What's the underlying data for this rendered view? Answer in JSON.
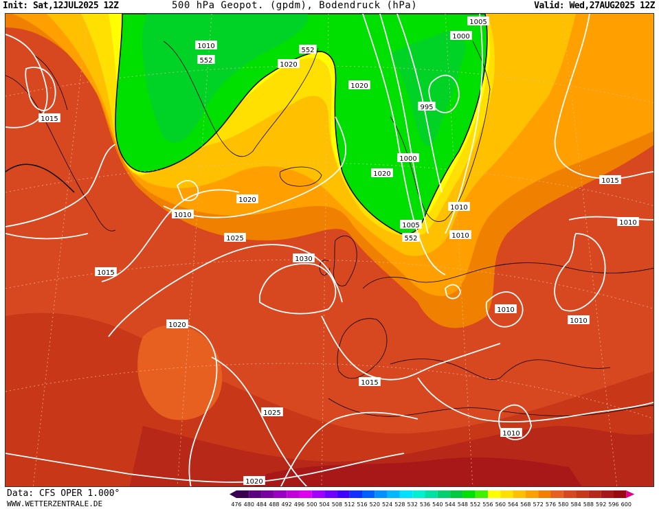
{
  "header": {
    "init": "Init: Sat,12JUL2025 12Z",
    "title": "500 hPa Geopot. (gpdm), Bodendruck (hPa)",
    "valid": "Valid: Wed,27AUG2025 12Z"
  },
  "footer": {
    "data_source": "Data: CFS OPER 1.000°",
    "website": "WWW.WETTERZENTRALE.DE"
  },
  "legend": {
    "values": [
      "476",
      "480",
      "484",
      "488",
      "492",
      "496",
      "500",
      "504",
      "508",
      "512",
      "516",
      "520",
      "524",
      "528",
      "532",
      "536",
      "540",
      "544",
      "548",
      "552",
      "556",
      "560",
      "564",
      "568",
      "572",
      "576",
      "580",
      "584",
      "588",
      "592",
      "596",
      "600"
    ],
    "colors": [
      "#3a0050",
      "#5a0080",
      "#7a00a0",
      "#9a00c0",
      "#c000d8",
      "#e000f0",
      "#a000ff",
      "#7000ff",
      "#4000ff",
      "#1030ff",
      "#0060ff",
      "#0090ff",
      "#00b8ff",
      "#00e0ff",
      "#00f0d0",
      "#00e0a0",
      "#00d070",
      "#00c840",
      "#00e000",
      "#40f000",
      "#ffff00",
      "#ffe000",
      "#ffc000",
      "#ffa000",
      "#f08000",
      "#e86020",
      "#d84820",
      "#c83818",
      "#b82818",
      "#a81818",
      "#980a10",
      "#e0008a"
    ]
  },
  "isobar_labels": [
    {
      "text": "1015"
    },
    {
      "text": "1010"
    },
    {
      "text": "552"
    },
    {
      "text": "1020"
    },
    {
      "text": "1020"
    },
    {
      "text": "552"
    },
    {
      "text": "1005"
    },
    {
      "text": "1000"
    },
    {
      "text": "995"
    },
    {
      "text": "1000"
    },
    {
      "text": "1015"
    },
    {
      "text": "552"
    },
    {
      "text": "1010"
    },
    {
      "text": "1020"
    },
    {
      "text": "1015"
    },
    {
      "text": "1010"
    },
    {
      "text": "1020"
    },
    {
      "text": "1025"
    },
    {
      "text": "1030"
    },
    {
      "text": "1005"
    },
    {
      "text": "1010"
    },
    {
      "text": "1010"
    },
    {
      "text": "1010"
    },
    {
      "text": "1010"
    },
    {
      "text": "1010"
    },
    {
      "text": "1020"
    },
    {
      "text": "1015"
    },
    {
      "text": "1025"
    },
    {
      "text": "1010"
    },
    {
      "text": "1020"
    }
  ]
}
